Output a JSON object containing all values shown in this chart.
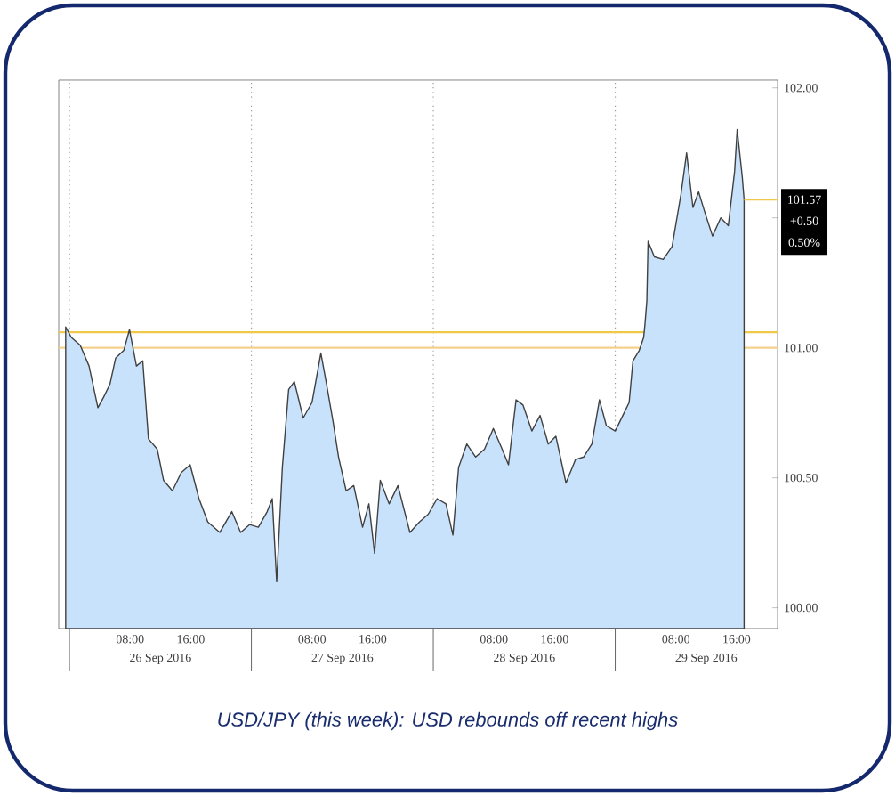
{
  "chart_data": {
    "type": "area",
    "annotations": [
      "USD/JPY (this week): USD rebounds off recent highs",
      "26 Sep 2016",
      "27 Sep 2016",
      "28 Sep 2016",
      "29 Sep 2016",
      {
        "text": "101.57",
        "x": "2016-09-29T17:00",
        "y": 101.57
      },
      "+0.50",
      "0.50%"
    ],
    "x": [
      "2016-09-25T23:30",
      "2016-09-26T00:15",
      "2016-09-26T01:25",
      "2016-09-26T02:35",
      "2016-09-26T03:45",
      "2016-09-26T04:30",
      "2016-09-26T05:20",
      "2016-09-26T06:05",
      "2016-09-26T07:10",
      "2016-09-26T07:55",
      "2016-09-26T08:50",
      "2016-09-26T09:40",
      "2016-09-26T10:25",
      "2016-09-26T11:35",
      "2016-09-26T12:25",
      "2016-09-26T13:35",
      "2016-09-26T14:45",
      "2016-09-26T15:55",
      "2016-09-26T17:05",
      "2016-09-26T18:15",
      "2016-09-26T19:50",
      "2016-09-26T21:25",
      "2016-09-26T22:35",
      "2016-09-26T23:45",
      "2016-09-27T00:55",
      "2016-09-27T02:05",
      "2016-09-27T02:45",
      "2016-09-27T03:20",
      "2016-09-27T04:05",
      "2016-09-27T04:55",
      "2016-09-27T05:40",
      "2016-09-27T06:50",
      "2016-09-27T08:00",
      "2016-09-27T09:10",
      "2016-09-27T09:55",
      "2016-09-27T10:45",
      "2016-09-27T11:30",
      "2016-09-27T12:30",
      "2016-09-27T13:30",
      "2016-09-27T14:40",
      "2016-09-27T15:30",
      "2016-09-27T16:15",
      "2016-09-27T17:00",
      "2016-09-27T18:10",
      "2016-09-27T19:20",
      "2016-09-27T20:55",
      "2016-09-27T22:10",
      "2016-09-27T23:20",
      "2016-09-28T00:30",
      "2016-09-28T01:40",
      "2016-09-28T02:35",
      "2016-09-28T03:20",
      "2016-09-28T04:25",
      "2016-09-28T05:35",
      "2016-09-28T06:45",
      "2016-09-28T07:55",
      "2016-09-28T09:05",
      "2016-09-28T09:55",
      "2016-09-28T10:55",
      "2016-09-28T11:50",
      "2016-09-28T13:00",
      "2016-09-28T14:05",
      "2016-09-28T15:10",
      "2016-09-28T16:10",
      "2016-09-28T17:30",
      "2016-09-28T18:45",
      "2016-09-28T19:50",
      "2016-09-28T20:55",
      "2016-09-28T21:55",
      "2016-09-28T22:50",
      "2016-09-29T00:00",
      "2016-09-29T01:00",
      "2016-09-29T01:50",
      "2016-09-29T02:20",
      "2016-09-29T03:10",
      "2016-09-29T03:45",
      "2016-09-29T03:55",
      "2016-09-29T04:10",
      "2016-09-29T04:20",
      "2016-09-29T05:10",
      "2016-09-29T06:20",
      "2016-09-29T07:30",
      "2016-09-29T08:40",
      "2016-09-29T09:25",
      "2016-09-29T10:15",
      "2016-09-29T11:00",
      "2016-09-29T11:50",
      "2016-09-29T12:50",
      "2016-09-29T13:55",
      "2016-09-29T14:55",
      "2016-09-29T15:45",
      "2016-09-29T16:05",
      "2016-09-29T16:45",
      "2016-09-29T17:00"
    ],
    "series": [
      {
        "color": "#c9e2fb",
        "values": [
          101.08,
          101.04,
          101.01,
          100.93,
          100.77,
          100.81,
          100.86,
          100.96,
          100.99,
          101.07,
          100.93,
          100.95,
          100.65,
          100.61,
          100.49,
          100.45,
          100.52,
          100.55,
          100.42,
          100.33,
          100.29,
          100.37,
          100.29,
          100.32,
          100.31,
          100.37,
          100.42,
          100.1,
          100.54,
          100.84,
          100.87,
          100.73,
          100.79,
          100.98,
          100.86,
          100.72,
          100.58,
          100.45,
          100.47,
          100.31,
          100.4,
          100.21,
          100.49,
          100.4,
          100.47,
          100.29,
          100.33,
          100.36,
          100.42,
          100.4,
          100.28,
          100.54,
          100.63,
          100.58,
          100.61,
          100.69,
          100.61,
          100.55,
          100.8,
          100.78,
          100.68,
          100.74,
          100.63,
          100.66,
          100.48,
          100.57,
          100.58,
          100.63,
          100.8,
          100.7,
          100.68,
          100.74,
          100.79,
          100.95,
          100.99,
          101.04,
          101.09,
          101.18,
          101.41,
          101.35,
          101.34,
          101.39,
          101.59,
          101.75,
          101.54,
          101.6,
          101.52,
          101.43,
          101.5,
          101.47,
          101.68,
          101.84,
          101.66,
          101.57
        ]
      }
    ],
    "xlim": [
      "2016-09-25T22:35",
      "2016-09-29T21:25"
    ],
    "xticks": [
      {
        "value": "2016-09-26T08:00",
        "label": "08:00"
      },
      {
        "value": "2016-09-26T16:00",
        "label": "16:00"
      },
      {
        "value": "2016-09-27T08:00",
        "label": "08:00"
      },
      {
        "value": "2016-09-27T16:00",
        "label": "16:00"
      },
      {
        "value": "2016-09-28T08:00",
        "label": "08:00"
      },
      {
        "value": "2016-09-28T16:00",
        "label": "16:00"
      },
      {
        "value": "2016-09-29T08:00",
        "label": "08:00"
      },
      {
        "value": "2016-09-29T16:00",
        "label": "16:00"
      }
    ],
    "ylim": [
      99.92,
      102.03
    ],
    "yticks": [
      {
        "value": 100,
        "label": "100.00"
      },
      {
        "value": 100.5,
        "label": "100.50"
      },
      {
        "value": 101,
        "label": "101.00"
      },
      {
        "value": 101.5,
        "label": null
      },
      {
        "value": 102,
        "label": "102.00"
      }
    ],
    "ref_lines": [
      {
        "axis": "x",
        "value": "2016-09-26T00:00",
        "color": "#9a9a9a",
        "line_style": "dotted"
      },
      {
        "axis": "x",
        "value": "2016-09-27T00:00",
        "color": "#9a9a9a",
        "line_style": "dotted"
      },
      {
        "axis": "x",
        "value": "2016-09-28T00:00",
        "color": "#9a9a9a",
        "line_style": "dotted"
      },
      {
        "axis": "x",
        "value": "2016-09-29T00:00",
        "color": "#9a9a9a",
        "line_style": "dotted"
      },
      {
        "axis": "y",
        "value": 101.06,
        "color": "#f0c84a",
        "line_style": "solid"
      },
      {
        "axis": "y",
        "value": 101.0,
        "color": "#f5cf8c",
        "line_style": "solid"
      }
    ],
    "grid": false,
    "marker": "none"
  }
}
